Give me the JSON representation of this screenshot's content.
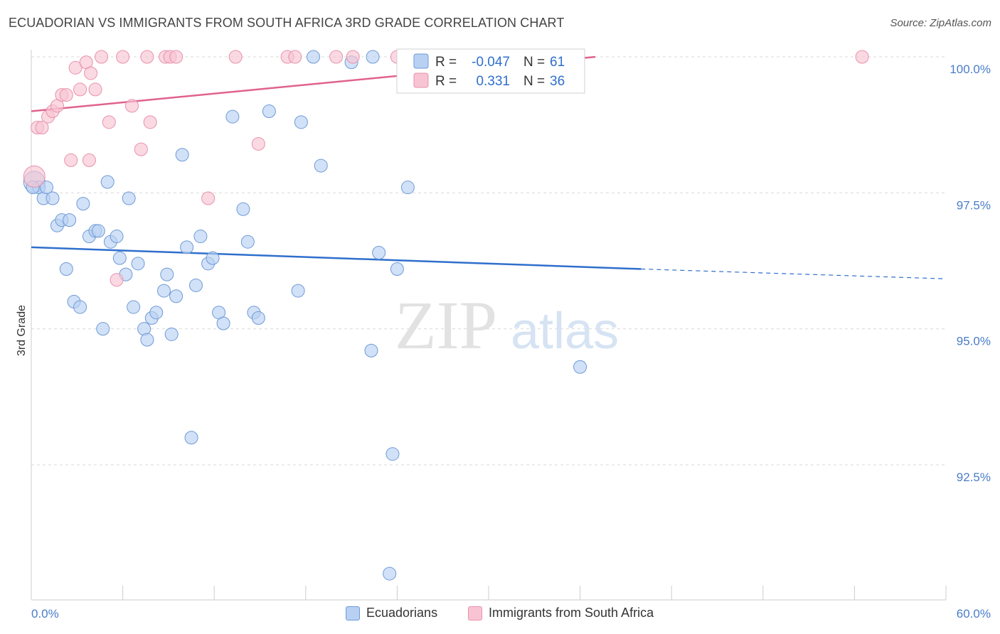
{
  "title": "ECUADORIAN VS IMMIGRANTS FROM SOUTH AFRICA 3RD GRADE CORRELATION CHART",
  "source": "Source: ZipAtlas.com",
  "watermark": {
    "zip": "ZIP",
    "atlas": "atlas"
  },
  "colors": {
    "blue_fill": "#b8d1f2",
    "blue_stroke": "#6f9ad6",
    "blue_line": "#2f6fcc",
    "pink_fill": "#f8c4d3",
    "pink_stroke": "#e891ad",
    "pink_line": "#e0628f",
    "tick_text": "#4a7cc8",
    "grid": "#d9d9d9"
  },
  "legend": {
    "rows": [
      {
        "r_label": "R =",
        "r_value": "-0.047",
        "n_label": "N =",
        "n_value": "61"
      },
      {
        "r_label": "R =",
        "r_value": "0.331",
        "n_label": "N =",
        "n_value": "36"
      }
    ]
  },
  "bottom_legend": [
    "Ecuadorians",
    "Immigrants from South Africa"
  ],
  "chart_data": {
    "type": "scatter",
    "title": "ECUADORIAN VS IMMIGRANTS FROM SOUTH AFRICA 3RD GRADE CORRELATION CHART",
    "ylabel": "3rd Grade",
    "xlabel": "",
    "xlim": [
      0,
      60
    ],
    "ylim": [
      90.0,
      100.5
    ],
    "x_tick_labels": [
      "0.0%",
      "60.0%"
    ],
    "y_ticks": [
      100.0,
      97.5,
      95.0,
      92.5
    ],
    "y_tick_labels": [
      "100.0%",
      "97.5%",
      "95.0%",
      "92.5%"
    ],
    "grid": true,
    "legend_position": "top-center",
    "series": [
      {
        "name": "Ecuadorians",
        "color": "#6f9ad6",
        "trend": {
          "x0": 0,
          "y0": 96.5,
          "x1": 40,
          "y1": 96.1,
          "dash_to_x": 60,
          "dash_to_y": 95.92
        },
        "points": [
          [
            0.2,
            97.7
          ],
          [
            0.5,
            97.6
          ],
          [
            0.8,
            97.4
          ],
          [
            1.0,
            97.6
          ],
          [
            1.4,
            97.4
          ],
          [
            1.7,
            96.9
          ],
          [
            2.0,
            97.0
          ],
          [
            2.5,
            97.0
          ],
          [
            2.3,
            96.1
          ],
          [
            2.8,
            95.5
          ],
          [
            3.2,
            95.4
          ],
          [
            3.4,
            97.3
          ],
          [
            3.8,
            96.7
          ],
          [
            4.2,
            96.8
          ],
          [
            4.4,
            96.8
          ],
          [
            4.7,
            95.0
          ],
          [
            5.0,
            97.7
          ],
          [
            5.2,
            96.6
          ],
          [
            5.6,
            96.7
          ],
          [
            5.8,
            96.3
          ],
          [
            6.2,
            96.0
          ],
          [
            6.4,
            97.4
          ],
          [
            6.7,
            95.4
          ],
          [
            7.0,
            96.2
          ],
          [
            7.4,
            95.0
          ],
          [
            7.6,
            94.8
          ],
          [
            7.9,
            95.2
          ],
          [
            8.2,
            95.3
          ],
          [
            8.7,
            95.7
          ],
          [
            8.9,
            96.0
          ],
          [
            9.2,
            94.9
          ],
          [
            9.5,
            95.6
          ],
          [
            9.9,
            98.2
          ],
          [
            10.2,
            96.5
          ],
          [
            10.5,
            93.0
          ],
          [
            10.8,
            95.8
          ],
          [
            11.1,
            96.7
          ],
          [
            11.6,
            96.2
          ],
          [
            11.9,
            96.3
          ],
          [
            12.3,
            95.3
          ],
          [
            12.6,
            95.1
          ],
          [
            13.2,
            98.9
          ],
          [
            13.9,
            97.2
          ],
          [
            14.2,
            96.6
          ],
          [
            14.6,
            95.3
          ],
          [
            14.9,
            95.2
          ],
          [
            15.6,
            99.0
          ],
          [
            17.7,
            98.8
          ],
          [
            17.5,
            95.7
          ],
          [
            19.0,
            98.0
          ],
          [
            18.5,
            100.0
          ],
          [
            21.0,
            99.9
          ],
          [
            22.3,
            94.6
          ],
          [
            22.4,
            100.0
          ],
          [
            22.8,
            96.4
          ],
          [
            23.5,
            90.5
          ],
          [
            23.7,
            92.7
          ],
          [
            24.0,
            96.1
          ],
          [
            24.7,
            97.6
          ],
          [
            36.0,
            94.3
          ],
          [
            0.1,
            97.6
          ]
        ]
      },
      {
        "name": "Immigrants from South Africa",
        "color": "#e891ad",
        "trend": {
          "x0": 0,
          "y0": 99.0,
          "x1": 37,
          "y1": 100.0
        },
        "points": [
          [
            0.2,
            97.8
          ],
          [
            0.4,
            98.7
          ],
          [
            0.7,
            98.7
          ],
          [
            1.1,
            98.9
          ],
          [
            1.4,
            99.0
          ],
          [
            1.7,
            99.1
          ],
          [
            2.0,
            99.3
          ],
          [
            2.3,
            99.3
          ],
          [
            2.6,
            98.1
          ],
          [
            2.9,
            99.8
          ],
          [
            3.2,
            99.4
          ],
          [
            3.6,
            99.9
          ],
          [
            3.8,
            98.1
          ],
          [
            3.9,
            99.7
          ],
          [
            4.2,
            99.4
          ],
          [
            4.6,
            100.0
          ],
          [
            5.1,
            98.8
          ],
          [
            5.6,
            95.9
          ],
          [
            6.0,
            100.0
          ],
          [
            6.6,
            99.1
          ],
          [
            7.2,
            98.3
          ],
          [
            7.6,
            100.0
          ],
          [
            7.8,
            98.8
          ],
          [
            8.8,
            100.0
          ],
          [
            9.1,
            100.0
          ],
          [
            9.5,
            100.0
          ],
          [
            11.6,
            97.4
          ],
          [
            13.4,
            100.0
          ],
          [
            14.9,
            98.4
          ],
          [
            16.8,
            100.0
          ],
          [
            17.3,
            100.0
          ],
          [
            20.0,
            100.0
          ],
          [
            21.1,
            100.0
          ],
          [
            24.0,
            100.0
          ],
          [
            33.0,
            100.0
          ],
          [
            54.5,
            100.0
          ]
        ]
      }
    ]
  }
}
